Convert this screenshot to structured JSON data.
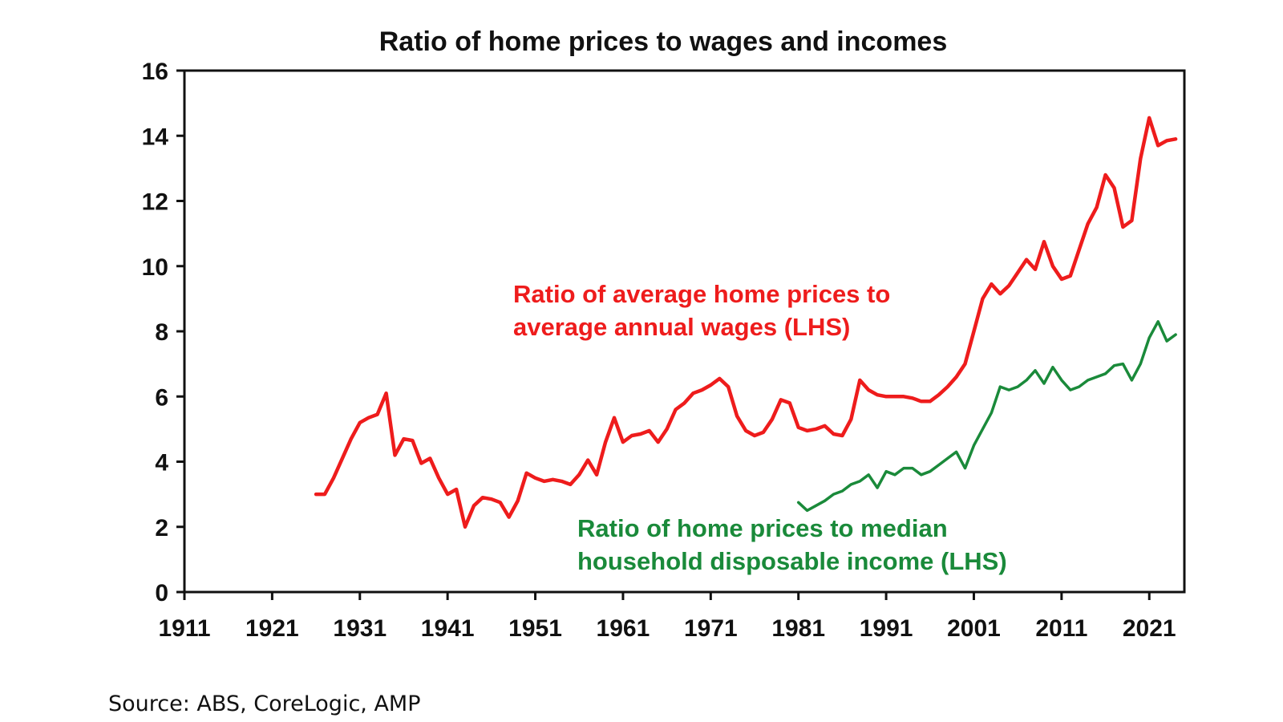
{
  "chart_data": {
    "type": "line",
    "title": "Ratio of home prices to wages and incomes",
    "xlabel": "",
    "ylabel": "",
    "xlim": [
      1911,
      2025
    ],
    "ylim": [
      0,
      16
    ],
    "x_ticks": [
      1911,
      1921,
      1931,
      1941,
      1951,
      1961,
      1971,
      1981,
      1991,
      2001,
      2011,
      2021
    ],
    "y_ticks": [
      0,
      2,
      4,
      6,
      8,
      10,
      12,
      14,
      16
    ],
    "grid": false,
    "series": [
      {
        "name": "Ratio of average home prices to average annual wages (LHS)",
        "color": "#ee1c1c",
        "label_lines": [
          "Ratio of average home prices to",
          "average annual wages (LHS)"
        ],
        "x": [
          1926,
          1927,
          1928,
          1929,
          1930,
          1931,
          1932,
          1933,
          1934,
          1935,
          1936,
          1937,
          1938,
          1939,
          1940,
          1941,
          1942,
          1943,
          1944,
          1945,
          1946,
          1947,
          1948,
          1949,
          1950,
          1951,
          1952,
          1953,
          1954,
          1955,
          1956,
          1957,
          1958,
          1959,
          1960,
          1961,
          1962,
          1963,
          1964,
          1965,
          1966,
          1967,
          1968,
          1969,
          1970,
          1971,
          1972,
          1973,
          1974,
          1975,
          1976,
          1977,
          1978,
          1979,
          1980,
          1981,
          1982,
          1983,
          1984,
          1985,
          1986,
          1987,
          1988,
          1989,
          1990,
          1991,
          1992,
          1993,
          1994,
          1995,
          1996,
          1997,
          1998,
          1999,
          2000,
          2001,
          2002,
          2003,
          2004,
          2005,
          2006,
          2007,
          2008,
          2009,
          2010,
          2011,
          2012,
          2013,
          2014,
          2015,
          2016,
          2017,
          2018,
          2019,
          2020,
          2021,
          2022,
          2023,
          2024
        ],
        "y": [
          3.0,
          3.0,
          3.5,
          4.1,
          4.7,
          5.2,
          5.35,
          5.45,
          6.1,
          4.2,
          4.7,
          4.65,
          3.95,
          4.1,
          3.5,
          3.0,
          3.15,
          2.0,
          2.65,
          2.9,
          2.85,
          2.75,
          2.3,
          2.8,
          3.65,
          3.5,
          3.4,
          3.45,
          3.4,
          3.3,
          3.6,
          4.05,
          3.6,
          4.6,
          5.35,
          4.6,
          4.8,
          4.85,
          4.95,
          4.6,
          5.0,
          5.6,
          5.8,
          6.1,
          6.2,
          6.35,
          6.55,
          6.3,
          5.4,
          4.95,
          4.8,
          4.9,
          5.3,
          5.9,
          5.8,
          5.05,
          4.95,
          5.0,
          5.1,
          4.85,
          4.8,
          5.3,
          6.5,
          6.2,
          6.05,
          6.0,
          6.0,
          6.0,
          5.95,
          5.85,
          5.85,
          6.05,
          6.3,
          6.6,
          7.0,
          8.0,
          9.0,
          9.45,
          9.15,
          9.4,
          9.8,
          10.2,
          9.9,
          10.75,
          10.0,
          9.6,
          9.7,
          10.5,
          11.3,
          11.8,
          12.8,
          12.4,
          11.2,
          11.4,
          13.3,
          14.55,
          13.7,
          13.85,
          13.9
        ]
      },
      {
        "name": "Ratio of home prices to median household disposable income (LHS)",
        "color": "#1a8a3a",
        "label_lines": [
          "Ratio of home prices to median",
          "household disposable income (LHS)"
        ],
        "x": [
          1981,
          1982,
          1983,
          1984,
          1985,
          1986,
          1987,
          1988,
          1989,
          1990,
          1991,
          1992,
          1993,
          1994,
          1995,
          1996,
          1997,
          1998,
          1999,
          2000,
          2001,
          2002,
          2003,
          2004,
          2005,
          2006,
          2007,
          2008,
          2009,
          2010,
          2011,
          2012,
          2013,
          2014,
          2015,
          2016,
          2017,
          2018,
          2019,
          2020,
          2021,
          2022,
          2023,
          2024
        ],
        "y": [
          2.75,
          2.5,
          2.65,
          2.8,
          3.0,
          3.1,
          3.3,
          3.4,
          3.6,
          3.2,
          3.7,
          3.6,
          3.8,
          3.8,
          3.6,
          3.7,
          3.9,
          4.1,
          4.3,
          3.8,
          4.5,
          5.0,
          5.5,
          6.3,
          6.2,
          6.3,
          6.5,
          6.8,
          6.4,
          6.9,
          6.5,
          6.2,
          6.3,
          6.5,
          6.6,
          6.7,
          6.95,
          7.0,
          6.5,
          7.0,
          7.8,
          8.3,
          7.7,
          7.9
        ]
      }
    ],
    "source": "Source: ABS, CoreLogic, AMP"
  }
}
